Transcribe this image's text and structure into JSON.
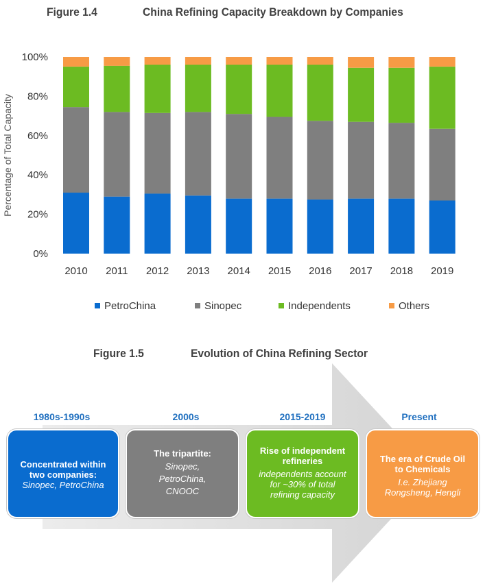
{
  "figure14": {
    "label": "Figure 1.4",
    "title": "China Refining Capacity Breakdown by Companies"
  },
  "chart_data": {
    "type": "bar",
    "stacked": true,
    "title": "China Refining Capacity Breakdown by Companies",
    "xlabel": "",
    "ylabel": "Percentage of Total Capacity",
    "ylim": [
      0,
      100
    ],
    "yticks": [
      "0%",
      "20%",
      "40%",
      "60%",
      "80%",
      "100%"
    ],
    "categories": [
      "2010",
      "2011",
      "2012",
      "2013",
      "2014",
      "2015",
      "2016",
      "2017",
      "2018",
      "2019"
    ],
    "series": [
      {
        "name": "PetroChina",
        "color": "#0a6ccf",
        "values": [
          31,
          29,
          30.5,
          29.5,
          28,
          28,
          27.5,
          28,
          28,
          27
        ]
      },
      {
        "name": "Sinopec",
        "color": "#7f7f7f",
        "values": [
          43.5,
          43,
          41,
          42.5,
          43,
          41.5,
          40,
          39,
          38.5,
          36.5
        ]
      },
      {
        "name": "Independents",
        "color": "#6cbb22",
        "values": [
          20.5,
          23.5,
          24.5,
          24,
          25,
          26.5,
          28.5,
          27.5,
          28,
          31.5
        ]
      },
      {
        "name": "Others",
        "color": "#f79b45",
        "values": [
          5,
          4.5,
          4,
          4,
          4,
          4,
          4,
          5.5,
          5.5,
          5
        ]
      }
    ],
    "legend_position": "bottom"
  },
  "figure15": {
    "label": "Figure 1.5",
    "title": "Evolution of China Refining Sector"
  },
  "eras": [
    {
      "period": "1980s-1990s",
      "title": "Concentrated within two companies:",
      "detail": "Sinopec, PetroChina",
      "color": "#0a6ccf"
    },
    {
      "period": "2000s",
      "title": "The tripartite:",
      "detail": "Sinopec, PetroChina, CNOOC",
      "color": "#7f7f7f"
    },
    {
      "period": "2015-2019",
      "title": "Rise of independent refineries",
      "detail": "independents account for ~30% of total refining capacity",
      "color": "#6cbb22"
    },
    {
      "period": "Present",
      "title": "The era of Crude Oil to Chemicals",
      "detail": "I.e. Zhejiang Rongsheng, Hengli",
      "color": "#f79b45"
    }
  ]
}
